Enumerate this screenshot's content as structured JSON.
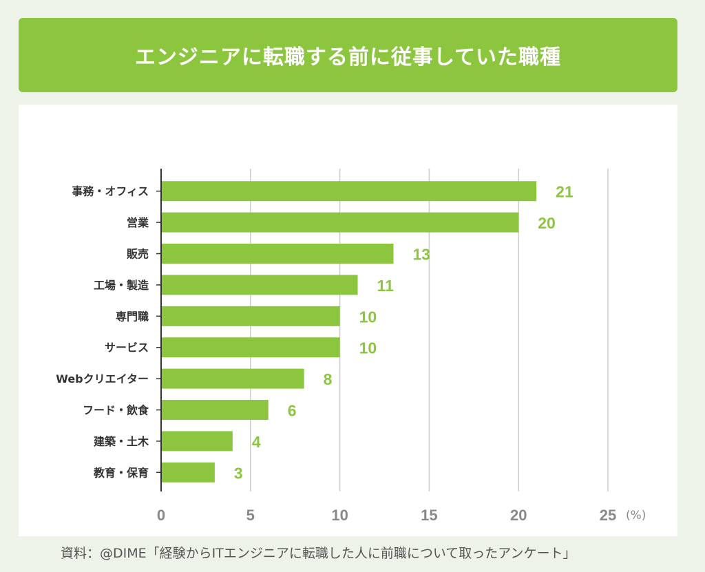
{
  "header": {
    "title": "エンジニアに転職する前に従事していた職種"
  },
  "source": {
    "text": "資料：@DIME「経験からITエンジニアに転職した人に前職について取ったアンケート」"
  },
  "colors": {
    "bar": "#8cc63f",
    "value_label": "#8cc63f",
    "grid": "#cccccc",
    "axis": "#333333",
    "tick": "#888888"
  },
  "chart_data": {
    "type": "bar",
    "orientation": "horizontal",
    "title": "エンジニアに転職する前に従事していた職種",
    "categories": [
      "事務・オフィス",
      "営業",
      "販売",
      "工場・製造",
      "専門職",
      "サービス",
      "Webクリエイター",
      "フード・飲食",
      "建築・土木",
      "教育・保育"
    ],
    "values": [
      21,
      20,
      13,
      11,
      10,
      10,
      8,
      6,
      4,
      3
    ],
    "value_labels": [
      "21",
      "20",
      "13",
      "11",
      "10",
      "10",
      "8",
      "6",
      "4",
      "3"
    ],
    "xlim": [
      0,
      25
    ],
    "xticks": [
      0,
      5,
      10,
      15,
      20,
      25
    ],
    "tick_labels": [
      "0",
      "5",
      "10",
      "15",
      "20",
      "25"
    ],
    "unit_label": "(%)",
    "grid": true,
    "xlabel": "",
    "ylabel": ""
  }
}
